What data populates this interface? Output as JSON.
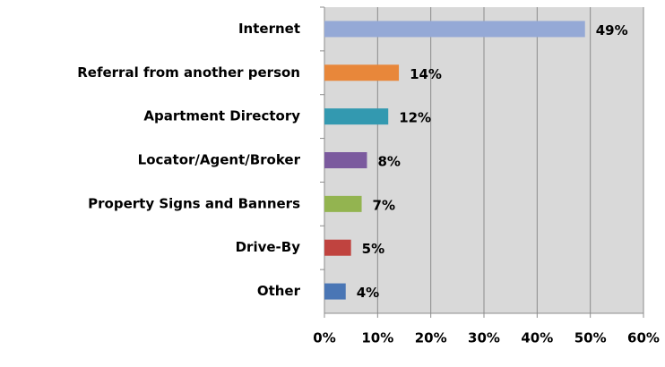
{
  "chart_data": {
    "type": "barh",
    "categories": [
      "Internet",
      "Referral from another person",
      "Apartment Directory",
      "Locator/Agent/Broker",
      "Property Signs and Banners",
      "Drive-By",
      "Other"
    ],
    "values": [
      49,
      14,
      12,
      8,
      7,
      5,
      4
    ],
    "value_labels": [
      "49%",
      "14%",
      "12%",
      "8%",
      "7%",
      "5%",
      "4%"
    ],
    "colors": [
      "#95a9d6",
      "#e8873a",
      "#3399b0",
      "#7b5a9e",
      "#93b450",
      "#c0433f",
      "#4a76b5"
    ],
    "xlim": [
      0,
      60
    ],
    "xticks": [
      {
        "value": 0,
        "label": "0%"
      },
      {
        "value": 10,
        "label": "10%"
      },
      {
        "value": 20,
        "label": "20%"
      },
      {
        "value": 30,
        "label": "30%"
      },
      {
        "value": 40,
        "label": "40%"
      },
      {
        "value": 50,
        "label": "50%"
      },
      {
        "value": 60,
        "label": "60%"
      }
    ],
    "grid": true
  }
}
